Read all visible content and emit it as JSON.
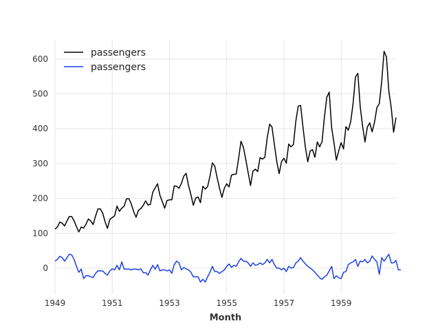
{
  "chart_data": {
    "type": "line",
    "title": "",
    "xlabel": "Month",
    "ylabel": "",
    "grid": true,
    "legend": "upper-left",
    "xlim": [
      1949.0,
      1960.917
    ],
    "ylim": [
      -75,
      655
    ],
    "x_ticks": [
      1949,
      1951,
      1953,
      1955,
      1957,
      1959
    ],
    "y_ticks": [
      0,
      100,
      200,
      300,
      400,
      500,
      600
    ],
    "x_start": 1949.0,
    "x_step": 0.083333,
    "series": [
      {
        "name": "passengers",
        "color": "#000000",
        "values": [
          112,
          118,
          132,
          129,
          121,
          135,
          148,
          148,
          136,
          119,
          104,
          118,
          115,
          126,
          141,
          135,
          125,
          149,
          170,
          170,
          158,
          133,
          114,
          140,
          145,
          150,
          178,
          163,
          172,
          178,
          199,
          199,
          184,
          162,
          146,
          166,
          171,
          180,
          193,
          181,
          183,
          218,
          230,
          242,
          209,
          191,
          172,
          194,
          196,
          196,
          236,
          235,
          229,
          243,
          264,
          272,
          237,
          211,
          180,
          201,
          204,
          188,
          235,
          227,
          234,
          264,
          302,
          293,
          259,
          229,
          203,
          229,
          242,
          233,
          267,
          269,
          270,
          315,
          364,
          347,
          312,
          274,
          237,
          278,
          284,
          277,
          317,
          313,
          318,
          374,
          413,
          405,
          355,
          306,
          271,
          306,
          315,
          301,
          356,
          348,
          355,
          422,
          465,
          467,
          404,
          347,
          305,
          336,
          340,
          318,
          362,
          348,
          363,
          435,
          491,
          505,
          404,
          359,
          310,
          337,
          360,
          342,
          406,
          396,
          420,
          472,
          548,
          559,
          463,
          407,
          362,
          405,
          417,
          391,
          419,
          461,
          472,
          535,
          622,
          606,
          508,
          461,
          390,
          432
        ]
      },
      {
        "name": "passengers",
        "color": "#1a3fe6",
        "values": [
          20,
          25,
          34,
          30,
          20,
          30,
          40,
          38,
          25,
          5,
          -12,
          -3,
          -30,
          -22,
          -22,
          -25,
          -27,
          -15,
          -8,
          -8,
          -8,
          -15,
          -20,
          -8,
          -2,
          -5,
          8,
          -5,
          18,
          -3,
          -3,
          -3,
          -5,
          -3,
          -3,
          -5,
          -2,
          -13,
          -13,
          -20,
          -5,
          8,
          -3,
          10,
          -8,
          -5,
          -5,
          -8,
          -5,
          -15,
          10,
          20,
          15,
          -5,
          2,
          -2,
          -5,
          -12,
          -25,
          -25,
          -25,
          -40,
          -32,
          -40,
          -25,
          -12,
          5,
          -10,
          -10,
          -15,
          -10,
          -5,
          5,
          12,
          2,
          8,
          5,
          18,
          28,
          20,
          20,
          15,
          5,
          15,
          8,
          10,
          15,
          10,
          15,
          25,
          15,
          25,
          10,
          0,
          0,
          -5,
          0,
          -10,
          5,
          0,
          2,
          15,
          20,
          30,
          20,
          12,
          5,
          0,
          -5,
          -12,
          -20,
          -28,
          -32,
          -25,
          -20,
          -8,
          5,
          -30,
          -22,
          -28,
          -30,
          -12,
          -10,
          10,
          15,
          18,
          25,
          5,
          20,
          18,
          25,
          15,
          20,
          35,
          25,
          18,
          -18,
          30,
          20,
          30,
          40,
          15,
          15,
          22,
          -5,
          -5
        ]
      }
    ]
  }
}
